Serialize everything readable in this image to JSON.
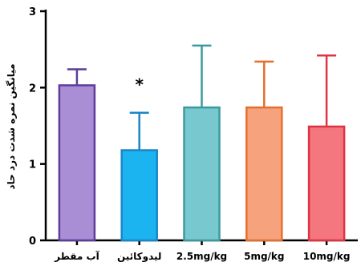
{
  "chart_data": {
    "type": "bar",
    "ylabel": "میانگین نمره شدت درد حاد",
    "ylim": [
      0,
      3
    ],
    "yticks": [
      0,
      1,
      2,
      3
    ],
    "categories": [
      "آب مقطر",
      "لیدوکائین",
      "2.5mg/kg",
      "5mg/kg",
      "10mg/kg"
    ],
    "values": [
      2.03,
      1.18,
      1.74,
      1.74,
      1.49
    ],
    "errors": [
      0.21,
      0.49,
      0.81,
      0.6,
      0.93
    ],
    "fill_colors": [
      "#a98ed6",
      "#1cb4f0",
      "#78c9cf",
      "#f5a27d",
      "#f4767e"
    ],
    "stroke_colors": [
      "#5c3d99",
      "#1a86c8",
      "#3b9aa0",
      "#e5702e",
      "#e03243"
    ],
    "annotations": [
      {
        "category_index": 1,
        "text": "*"
      }
    ],
    "grid": false
  }
}
